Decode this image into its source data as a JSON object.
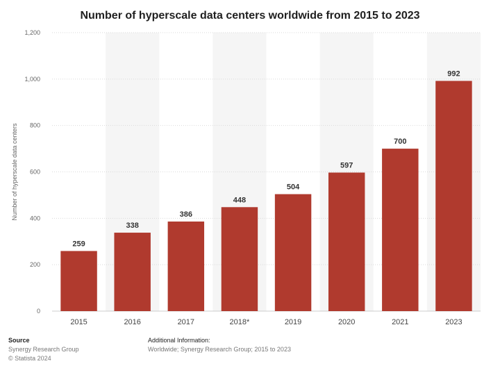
{
  "title": "Number of hyperscale data centers worldwide from 2015 to 2023",
  "chart_data": {
    "type": "bar",
    "title": "Number of hyperscale data centers worldwide from 2015 to 2023",
    "categories": [
      "2015",
      "2016",
      "2017",
      "2018*",
      "2019",
      "2020",
      "2021",
      "2023"
    ],
    "values": [
      259,
      338,
      386,
      448,
      504,
      597,
      700,
      992
    ],
    "ylabel": "Number of hyperscale data centers",
    "xlabel": "",
    "ylim": [
      0,
      1200
    ],
    "yticks": [
      0,
      200,
      400,
      600,
      800,
      1000,
      1200
    ],
    "ytick_labels": [
      "0",
      "200",
      "400",
      "600",
      "800",
      "1,000",
      "1,200"
    ],
    "grid": true,
    "bar_color": "#b03a2e",
    "band_color": "#f5f5f5"
  },
  "footer": {
    "source_label": "Source",
    "source_lines": [
      "Synergy Research Group",
      "© Statista 2024"
    ],
    "additional_label": "Additional Information:",
    "additional_text": "Worldwide; Synergy Research Group; 2015 to 2023"
  }
}
